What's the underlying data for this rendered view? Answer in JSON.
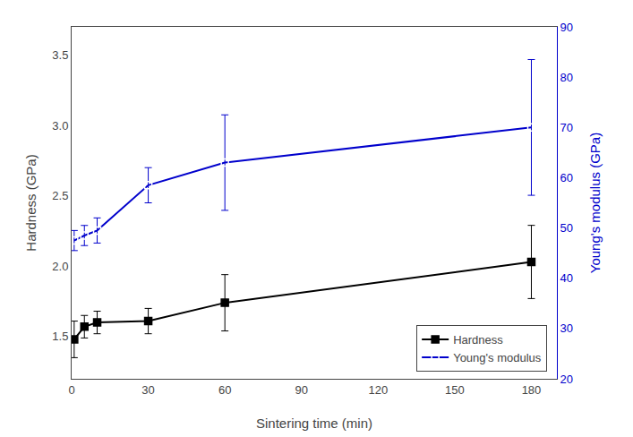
{
  "chart_data": {
    "type": "line",
    "x_label": "Sintering time (min)",
    "y_label": "Hardness (GPa)",
    "y2_label": "Young's modulus (GPa)",
    "x": [
      1,
      5,
      10,
      30,
      60,
      180
    ],
    "series": [
      {
        "name": "Hardness",
        "color": "#000000",
        "marker": "square",
        "values": [
          1.48,
          1.57,
          1.6,
          1.61,
          1.74,
          2.03
        ],
        "errors": [
          0.13,
          0.08,
          0.08,
          0.09,
          0.2,
          0.26
        ]
      },
      {
        "name": "Young's modulus",
        "color": "#0000cc",
        "marker": "square-open",
        "axis": "y2",
        "values": [
          47.5,
          48.5,
          49.5,
          58.5,
          63.0,
          70.0
        ],
        "errors": [
          2.0,
          2.0,
          2.5,
          3.5,
          9.5,
          13.5
        ]
      }
    ],
    "xlim": [
      0,
      190
    ],
    "xticks": [
      0,
      30,
      60,
      90,
      120,
      150,
      180
    ],
    "ylim": [
      1.2,
      3.7
    ],
    "yticks": [
      1.5,
      {
        "value": 2,
        "label": "2.0"
      },
      2.5,
      {
        "value": 3,
        "label": "3.0"
      },
      3.5
    ],
    "y2lim": [
      20,
      90
    ],
    "y2ticks": [
      20,
      30,
      40,
      50,
      60,
      70,
      80,
      90
    ],
    "legend": "lower right",
    "grid": false
  }
}
